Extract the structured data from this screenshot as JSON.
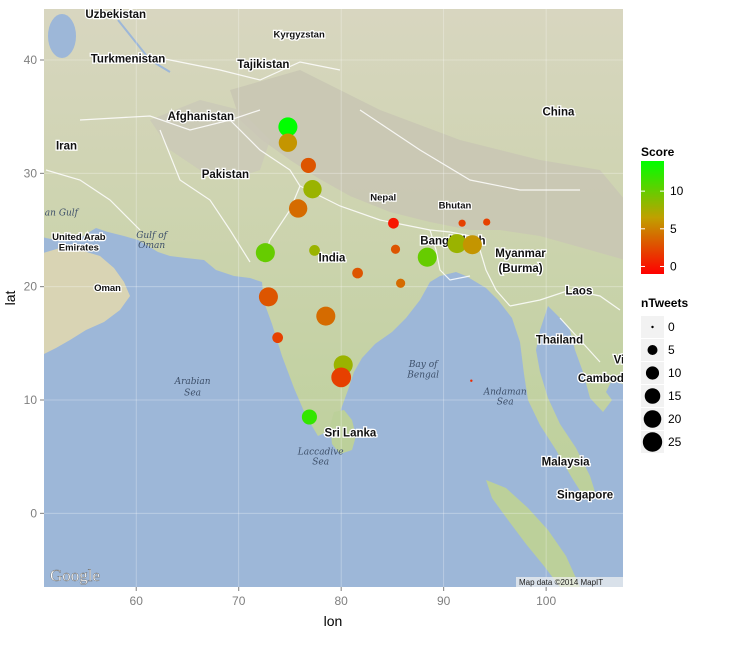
{
  "chart_data": {
    "type": "scatter",
    "title": "",
    "xlabel": "lon",
    "ylabel": "lat",
    "xlim": [
      51,
      107.5
    ],
    "ylim": [
      -6.5,
      44.5
    ],
    "x_ticks": [
      60,
      70,
      80,
      90,
      100
    ],
    "y_ticks": [
      0,
      10,
      20,
      30,
      40
    ],
    "grid": true,
    "background": "Google terrain map",
    "map_attribution": "Map data ©2014 MapIT",
    "map_brand": "Google",
    "color_legend": {
      "title": "Score",
      "ticks": [
        0,
        5,
        10
      ],
      "range": [
        -1,
        14
      ],
      "low_color": "#ff0000",
      "high_color": "#00ff00",
      "placement": "right"
    },
    "size_legend": {
      "title": "nTweets",
      "values": [
        0,
        5,
        10,
        15,
        20,
        25
      ],
      "placement": "right"
    },
    "points": [
      {
        "lon": 74.8,
        "lat": 34.1,
        "score": 14,
        "n": 24
      },
      {
        "lon": 74.8,
        "lat": 32.7,
        "score": 6,
        "n": 22
      },
      {
        "lon": 76.8,
        "lat": 30.7,
        "score": 3,
        "n": 14
      },
      {
        "lon": 77.2,
        "lat": 28.6,
        "score": 8,
        "n": 22
      },
      {
        "lon": 75.8,
        "lat": 26.9,
        "score": 4,
        "n": 22
      },
      {
        "lon": 77.4,
        "lat": 23.2,
        "score": 8,
        "n": 6
      },
      {
        "lon": 72.6,
        "lat": 23.0,
        "score": 10,
        "n": 24
      },
      {
        "lon": 72.9,
        "lat": 19.1,
        "score": 3,
        "n": 24
      },
      {
        "lon": 73.8,
        "lat": 15.5,
        "score": 2,
        "n": 6
      },
      {
        "lon": 78.5,
        "lat": 17.4,
        "score": 4,
        "n": 24
      },
      {
        "lon": 80.2,
        "lat": 13.1,
        "score": 8,
        "n": 24
      },
      {
        "lon": 80.0,
        "lat": 12.0,
        "score": 2,
        "n": 26
      },
      {
        "lon": 76.9,
        "lat": 8.5,
        "score": 12,
        "n": 14
      },
      {
        "lon": 81.6,
        "lat": 21.2,
        "score": 3,
        "n": 6
      },
      {
        "lon": 85.1,
        "lat": 25.6,
        "score": 0,
        "n": 6
      },
      {
        "lon": 85.3,
        "lat": 23.3,
        "score": 3,
        "n": 4
      },
      {
        "lon": 85.8,
        "lat": 20.3,
        "score": 4,
        "n": 4
      },
      {
        "lon": 88.4,
        "lat": 22.6,
        "score": 10,
        "n": 24
      },
      {
        "lon": 91.3,
        "lat": 23.8,
        "score": 8,
        "n": 24
      },
      {
        "lon": 92.8,
        "lat": 23.7,
        "score": 6,
        "n": 24
      },
      {
        "lon": 91.8,
        "lat": 25.6,
        "score": 2,
        "n": 2
      },
      {
        "lon": 94.2,
        "lat": 25.7,
        "score": 2,
        "n": 2
      },
      {
        "lon": 92.7,
        "lat": 11.7,
        "score": 1,
        "n": 0
      }
    ]
  },
  "map_labels": [
    {
      "text": "Uzbekistan",
      "lon": 58,
      "lat": 43.7,
      "cls": "country"
    },
    {
      "text": "Kyrgyzstan",
      "lon": 75.9,
      "lat": 42.0,
      "cls": "country-sm"
    },
    {
      "text": "Tajikistan",
      "lon": 72.4,
      "lat": 39.3,
      "cls": "country"
    },
    {
      "text": "Turkmenistan",
      "lon": 59.2,
      "lat": 39.8,
      "cls": "country"
    },
    {
      "text": "Afghanistan",
      "lon": 66.3,
      "lat": 34.7,
      "cls": "country"
    },
    {
      "text": "Iran",
      "lon": 53.2,
      "lat": 32.1,
      "cls": "country"
    },
    {
      "text": "Pakistan",
      "lon": 68.7,
      "lat": 29.6,
      "cls": "country"
    },
    {
      "text": "China",
      "lon": 101.2,
      "lat": 35.1,
      "cls": "country"
    },
    {
      "text": "Nepal",
      "lon": 84.1,
      "lat": 27.6,
      "cls": "country-sm"
    },
    {
      "text": "Bhutan",
      "lon": 91.1,
      "lat": 26.9,
      "cls": "country-sm"
    },
    {
      "text": "India",
      "lon": 79.1,
      "lat": 22.2,
      "cls": "country"
    },
    {
      "text": "Bangladesh",
      "lon": 90.9,
      "lat": 23.7,
      "cls": "country"
    },
    {
      "text": "Myanmar",
      "lon": 97.5,
      "lat": 22.6,
      "cls": "country"
    },
    {
      "text": "(Burma)",
      "lon": 97.5,
      "lat": 21.3,
      "cls": "country"
    },
    {
      "text": "Laos",
      "lon": 103.2,
      "lat": 19.3,
      "cls": "country"
    },
    {
      "text": "Thailand",
      "lon": 101.3,
      "lat": 15.0,
      "cls": "country"
    },
    {
      "text": "Vi",
      "lon": 107.1,
      "lat": 13.2,
      "cls": "country"
    },
    {
      "text": "Cambodi",
      "lon": 105.5,
      "lat": 11.6,
      "cls": "country"
    },
    {
      "text": "Malaysia",
      "lon": 101.9,
      "lat": 4.2,
      "cls": "country"
    },
    {
      "text": "Singapore",
      "lon": 103.8,
      "lat": 1.3,
      "cls": "country"
    },
    {
      "text": "Sri Lanka",
      "lon": 80.9,
      "lat": 6.8,
      "cls": "country"
    },
    {
      "text": "United Arab",
      "lon": 54.4,
      "lat": 24.1,
      "cls": "country-sm"
    },
    {
      "text": "Emirates",
      "lon": 54.4,
      "lat": 23.2,
      "cls": "country-sm"
    },
    {
      "text": "Oman",
      "lon": 57.2,
      "lat": 19.6,
      "cls": "country-sm"
    },
    {
      "text": "Gulf of",
      "lon": 61.5,
      "lat": 24.3,
      "cls": "sea"
    },
    {
      "text": "Oman",
      "lon": 61.5,
      "lat": 23.4,
      "cls": "sea"
    },
    {
      "text": "an Gulf",
      "lon": 52.7,
      "lat": 26.3,
      "cls": "sea"
    },
    {
      "text": "Arabian",
      "lon": 65.5,
      "lat": 11.4,
      "cls": "sea"
    },
    {
      "text": "Sea",
      "lon": 65.5,
      "lat": 10.4,
      "cls": "sea"
    },
    {
      "text": "Bay of",
      "lon": 88.0,
      "lat": 12.9,
      "cls": "sea"
    },
    {
      "text": "Bengal",
      "lon": 88.0,
      "lat": 12.0,
      "cls": "sea"
    },
    {
      "text": "Andaman",
      "lon": 96.0,
      "lat": 10.5,
      "cls": "sea"
    },
    {
      "text": "Sea",
      "lon": 96.0,
      "lat": 9.6,
      "cls": "sea"
    },
    {
      "text": "Laccadive",
      "lon": 78.0,
      "lat": 5.2,
      "cls": "sea"
    },
    {
      "text": "Sea",
      "lon": 78.0,
      "lat": 4.3,
      "cls": "sea"
    }
  ]
}
